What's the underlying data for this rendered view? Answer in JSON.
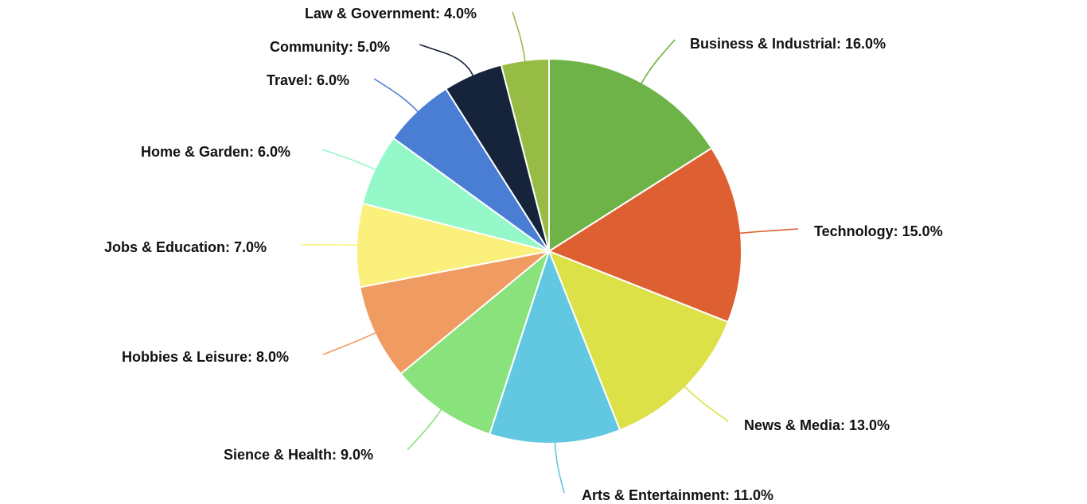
{
  "chart_data": {
    "type": "pie",
    "title": "",
    "start_angle_deg": 0,
    "direction": "clockwise",
    "slices": [
      {
        "label": "Business & Industrial",
        "value": 16.0,
        "display": "Business & Industrial: 16.0%",
        "color": "#6DB347"
      },
      {
        "label": "Technology",
        "value": 15.0,
        "display": "Technology: 15.0%",
        "color": "#DE6032"
      },
      {
        "label": "News & Media",
        "value": 13.0,
        "display": "News & Media: 13.0%",
        "color": "#DCE148"
      },
      {
        "label": "Arts & Entertainment",
        "value": 11.0,
        "display": "Arts & Entertainment: 11.0%",
        "color": "#62C8E1"
      },
      {
        "label": "Sience & Health",
        "value": 9.0,
        "display": "Sience & Health: 9.0%",
        "color": "#8AE27D"
      },
      {
        "label": "Hobbies & Leisure",
        "value": 8.0,
        "display": "Hobbies & Leisure: 8.0%",
        "color": "#F09B62"
      },
      {
        "label": "Jobs & Education",
        "value": 7.0,
        "display": "Jobs & Education: 7.0%",
        "color": "#FBF07B"
      },
      {
        "label": "Home & Garden",
        "value": 6.0,
        "display": "Home & Garden: 6.0%",
        "color": "#95F8C8"
      },
      {
        "label": "Travel",
        "value": 6.0,
        "display": "Travel: 6.0%",
        "color": "#4A7ED5"
      },
      {
        "label": "Community",
        "value": 5.0,
        "display": "Community: 5.0%",
        "color": "#15233B"
      },
      {
        "label": "Law & Government",
        "value": 4.0,
        "display": "Law & Government: 4.0%",
        "color": "#97BC45"
      }
    ]
  }
}
